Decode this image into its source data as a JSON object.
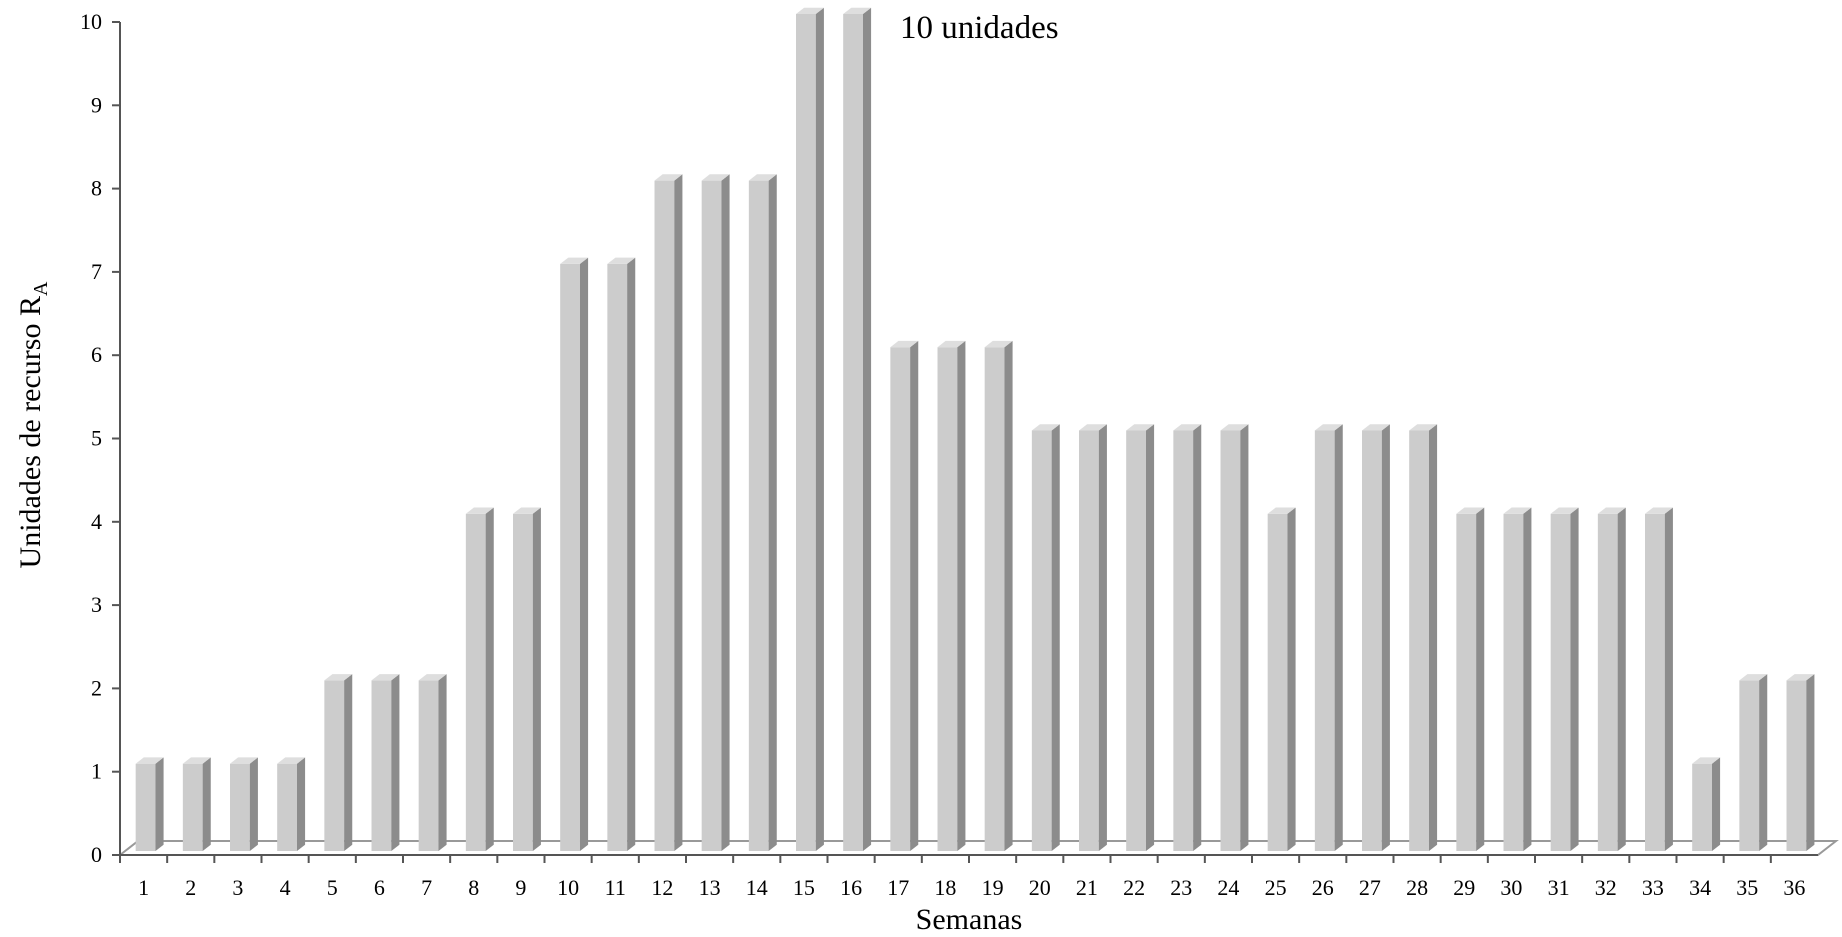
{
  "chart_data": {
    "type": "bar",
    "categories": [
      "1",
      "2",
      "3",
      "4",
      "5",
      "6",
      "7",
      "8",
      "9",
      "10",
      "11",
      "12",
      "13",
      "14",
      "15",
      "16",
      "17",
      "18",
      "19",
      "20",
      "21",
      "22",
      "23",
      "24",
      "25",
      "26",
      "27",
      "28",
      "29",
      "30",
      "31",
      "32",
      "33",
      "34",
      "35",
      "36"
    ],
    "values": [
      1,
      1,
      1,
      1,
      2,
      2,
      2,
      4,
      4,
      7,
      7,
      8,
      8,
      8,
      10,
      10,
      6,
      6,
      6,
      5,
      5,
      5,
      5,
      5,
      4,
      5,
      5,
      5,
      4,
      4,
      4,
      4,
      4,
      1,
      2,
      2
    ],
    "xlabel": "Semanas",
    "ylabel_main": "Unidades de recurso R",
    "ylabel_sub": "A",
    "ylim": [
      0,
      10
    ],
    "yticks": [
      0,
      1,
      2,
      3,
      4,
      5,
      6,
      7,
      8,
      9,
      10
    ],
    "annotation": "10 unidades",
    "grid": false,
    "colors": {
      "bar_front": "#cccccc",
      "bar_side": "#8c8c8c",
      "bar_top": "#dedede",
      "axis": "#555555",
      "floor": "#999999"
    }
  }
}
